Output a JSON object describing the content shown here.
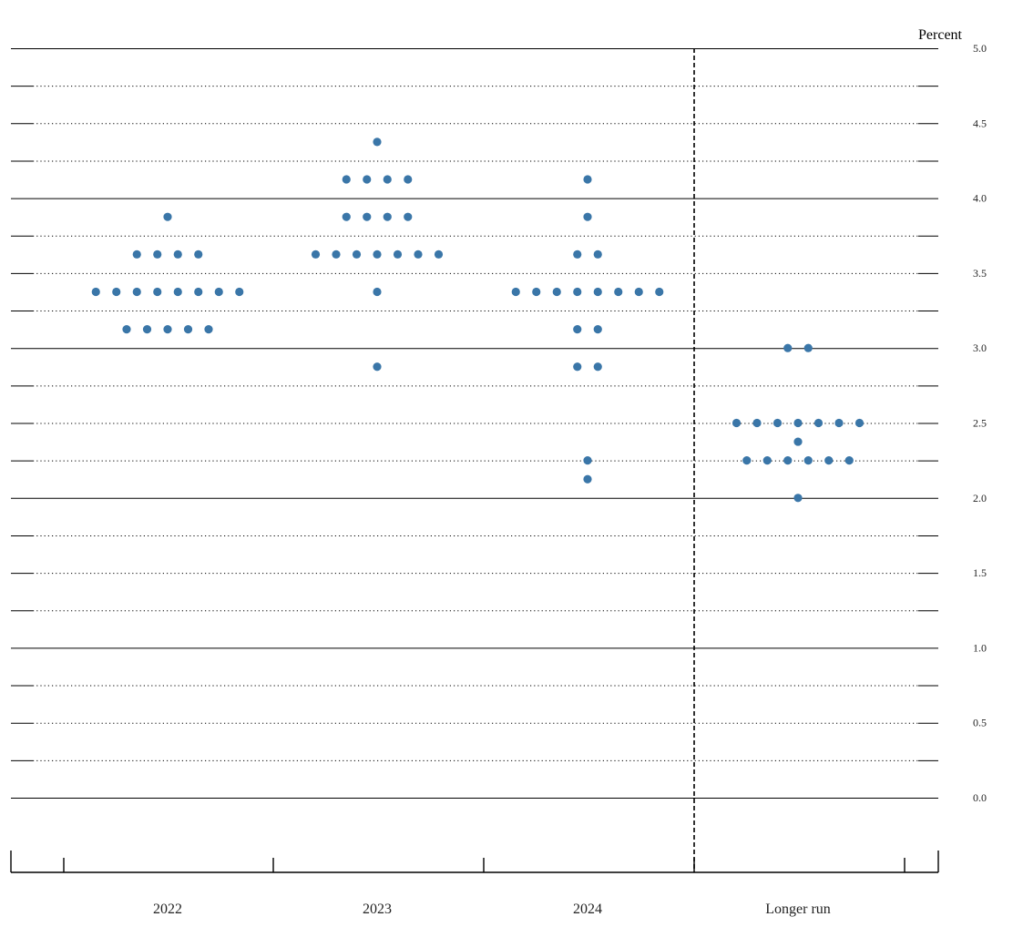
{
  "chart_data": {
    "type": "scatter",
    "ylabel": "Percent",
    "categories": [
      "2022",
      "2023",
      "2024",
      "Longer run"
    ],
    "ylim": [
      0.0,
      5.0
    ],
    "yticks": [
      "0.0",
      "0.5",
      "1.0",
      "1.5",
      "2.0",
      "2.5",
      "3.0",
      "3.5",
      "4.0",
      "4.5",
      "5.0"
    ],
    "grid": true,
    "marker_color": "#3a76a8",
    "points": [
      {
        "category": "2022",
        "y": 3.875,
        "count": 1
      },
      {
        "category": "2022",
        "y": 3.625,
        "count": 4
      },
      {
        "category": "2022",
        "y": 3.375,
        "count": 8
      },
      {
        "category": "2022",
        "y": 3.125,
        "count": 5
      },
      {
        "category": "2023",
        "y": 4.375,
        "count": 1
      },
      {
        "category": "2023",
        "y": 4.125,
        "count": 4
      },
      {
        "category": "2023",
        "y": 3.875,
        "count": 4
      },
      {
        "category": "2023",
        "y": 3.625,
        "count": 7
      },
      {
        "category": "2023",
        "y": 3.375,
        "count": 1
      },
      {
        "category": "2023",
        "y": 2.875,
        "count": 1
      },
      {
        "category": "2024",
        "y": 4.125,
        "count": 1
      },
      {
        "category": "2024",
        "y": 3.875,
        "count": 1
      },
      {
        "category": "2024",
        "y": 3.625,
        "count": 2
      },
      {
        "category": "2024",
        "y": 3.375,
        "count": 8
      },
      {
        "category": "2024",
        "y": 3.125,
        "count": 2
      },
      {
        "category": "2024",
        "y": 2.875,
        "count": 2
      },
      {
        "category": "2024",
        "y": 2.25,
        "count": 1
      },
      {
        "category": "2024",
        "y": 2.125,
        "count": 1
      },
      {
        "category": "Longer run",
        "y": 3.0,
        "count": 2
      },
      {
        "category": "Longer run",
        "y": 2.5,
        "count": 7
      },
      {
        "category": "Longer run",
        "y": 2.375,
        "count": 1
      },
      {
        "category": "Longer run",
        "y": 2.25,
        "count": 6
      },
      {
        "category": "Longer run",
        "y": 2.0,
        "count": 1
      }
    ]
  }
}
